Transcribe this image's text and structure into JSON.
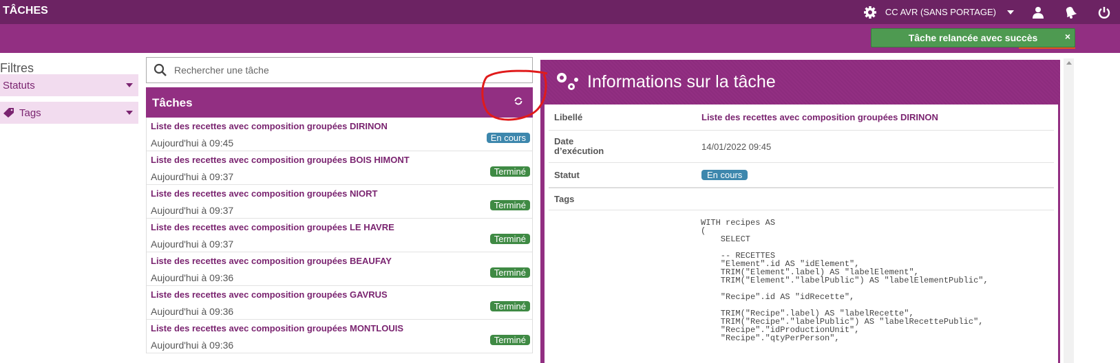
{
  "header": {
    "title": "TÂCHES",
    "establishment": "CC AVR (SANS PORTAGE)"
  },
  "toast": {
    "message": "Tâche relancée avec succès",
    "close": "×"
  },
  "filters": {
    "title": "Filtres",
    "statuts": "Statuts",
    "tags": "Tags"
  },
  "search": {
    "placeholder": "Rechercher une tâche"
  },
  "tasks": {
    "title": "Tâches",
    "items": [
      {
        "title": "Liste des recettes avec composition groupées DIRINON",
        "date": "Aujourd'hui à 09:45",
        "status": "En cours"
      },
      {
        "title": "Liste des recettes avec composition groupées BOIS HIMONT",
        "date": "Aujourd'hui à 09:37",
        "status": "Terminé"
      },
      {
        "title": "Liste des recettes avec composition groupées NIORT",
        "date": "Aujourd'hui à 09:37",
        "status": "Terminé"
      },
      {
        "title": "Liste des recettes avec composition groupées LE HAVRE",
        "date": "Aujourd'hui à 09:37",
        "status": "Terminé"
      },
      {
        "title": "Liste des recettes avec composition groupées BEAUFAY",
        "date": "Aujourd'hui à 09:36",
        "status": "Terminé"
      },
      {
        "title": "Liste des recettes avec composition groupées GAVRUS",
        "date": "Aujourd'hui à 09:36",
        "status": "Terminé"
      },
      {
        "title": "Liste des recettes avec composition groupées MONTLOUIS",
        "date": "Aujourd'hui à 09:36",
        "status": "Terminé"
      }
    ]
  },
  "colors": {
    "en_cours": "#3d87ad",
    "termine": "#3f8a44",
    "brand": "#922f82"
  },
  "info": {
    "title": "Informations sur la tâche",
    "labels": {
      "libelle": "Libellé",
      "date": "Date\nd’exécution",
      "statut": "Statut",
      "tags": "Tags"
    },
    "libelle": "Liste des recettes avec composition groupées DIRINON",
    "date": "14/01/2022 09:45",
    "statut": "En cours",
    "query": "WITH recipes AS\n(\n    SELECT\n\n    -- RECETTES\n    \"Element\".id AS \"idElement\",\n    TRIM(\"Element\".label) AS \"labelElement\",\n    TRIM(\"Element\".\"labelPublic\") AS \"labelElementPublic\",\n\n    \"Recipe\".id AS \"idRecette\",\n\n    TRIM(\"Recipe\".label) AS \"labelRecette\",\n    TRIM(\"Recipe\".\"labelPublic\") AS \"labelRecettePublic\",\n    \"Recipe\".\"idProductionUnit\",\n    \"Recipe\".\"qtyPerPerson\","
  }
}
